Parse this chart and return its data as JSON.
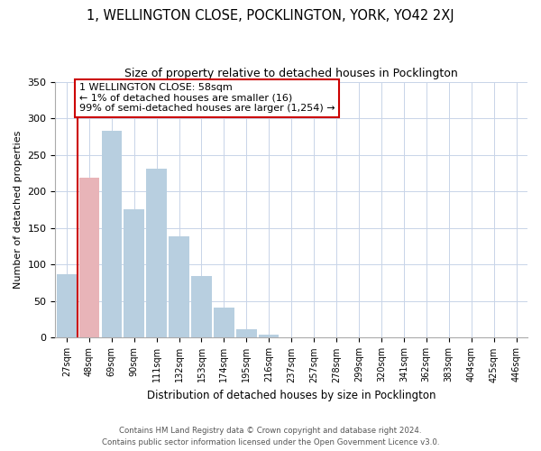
{
  "title": "1, WELLINGTON CLOSE, POCKLINGTON, YORK, YO42 2XJ",
  "subtitle": "Size of property relative to detached houses in Pocklington",
  "xlabel": "Distribution of detached houses by size in Pocklington",
  "ylabel": "Number of detached properties",
  "bar_labels": [
    "27sqm",
    "48sqm",
    "69sqm",
    "90sqm",
    "111sqm",
    "132sqm",
    "153sqm",
    "174sqm",
    "195sqm",
    "216sqm",
    "237sqm",
    "257sqm",
    "278sqm",
    "299sqm",
    "320sqm",
    "341sqm",
    "362sqm",
    "383sqm",
    "404sqm",
    "425sqm",
    "446sqm"
  ],
  "bar_values": [
    87,
    219,
    283,
    175,
    231,
    139,
    85,
    41,
    12,
    4,
    1,
    0,
    0,
    0,
    0,
    0,
    0,
    0,
    0,
    0,
    0
  ],
  "bar_color": "#b8cfe0",
  "highlight_bar_index": 1,
  "highlight_bar_color": "#e8b4b8",
  "vline_color": "#cc0000",
  "ylim": [
    0,
    350
  ],
  "yticks": [
    0,
    50,
    100,
    150,
    200,
    250,
    300,
    350
  ],
  "annotation_title": "1 WELLINGTON CLOSE: 58sqm",
  "annotation_line1": "← 1% of detached houses are smaller (16)",
  "annotation_line2": "99% of semi-detached houses are larger (1,254) →",
  "annotation_box_color": "#ffffff",
  "annotation_box_edge": "#cc0000",
  "footer1": "Contains HM Land Registry data © Crown copyright and database right 2024.",
  "footer2": "Contains public sector information licensed under the Open Government Licence v3.0."
}
